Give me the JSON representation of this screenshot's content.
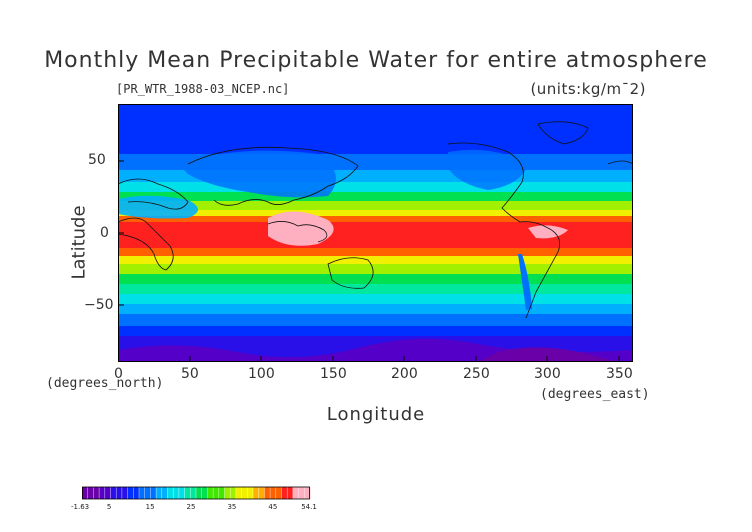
{
  "title": "Monthly Mean Precipitable Water for entire atmosphere",
  "file_label": "[PR_WTR_1988-03_NCEP.nc]",
  "units_label": "(units:kg/m¯2)",
  "axes": {
    "ylabel": "Latitude",
    "xlabel": "Longitude",
    "y_unit": "(degrees_north)",
    "x_unit": "(degrees_east)",
    "y_ticks": [
      "50",
      "0",
      "−50"
    ],
    "x_ticks": [
      "0",
      "50",
      "100",
      "150",
      "200",
      "250",
      "300",
      "350"
    ]
  },
  "colorbar": {
    "labels": [
      "-1.63",
      "5",
      "15",
      "25",
      "35",
      "45",
      "54.1"
    ],
    "colors": [
      "#6a00a8",
      "#5500c8",
      "#2a10e8",
      "#0030ff",
      "#0070ff",
      "#00b0ff",
      "#00e0e8",
      "#00e8a0",
      "#00e050",
      "#40e800",
      "#a0f000",
      "#f0f000",
      "#ffb000",
      "#ff6000",
      "#ff2020",
      "#ffb0c0"
    ]
  },
  "chart_data": {
    "type": "heatmap",
    "title": "Monthly Mean Precipitable Water for entire atmosphere",
    "xlabel": "Longitude",
    "ylabel": "Latitude",
    "x_unit": "degrees_east",
    "y_unit": "degrees_north",
    "xlim": [
      0,
      360
    ],
    "ylim": [
      -90,
      90
    ],
    "x_ticks": [
      0,
      50,
      100,
      150,
      200,
      250,
      300,
      350
    ],
    "y_ticks": [
      -50,
      0,
      50
    ],
    "value_range": [
      -1.63,
      54.1
    ],
    "units": "kg/m^2",
    "colorbar_ticks": [
      -1.63,
      5,
      15,
      25,
      35,
      45,
      54.1
    ]
  }
}
